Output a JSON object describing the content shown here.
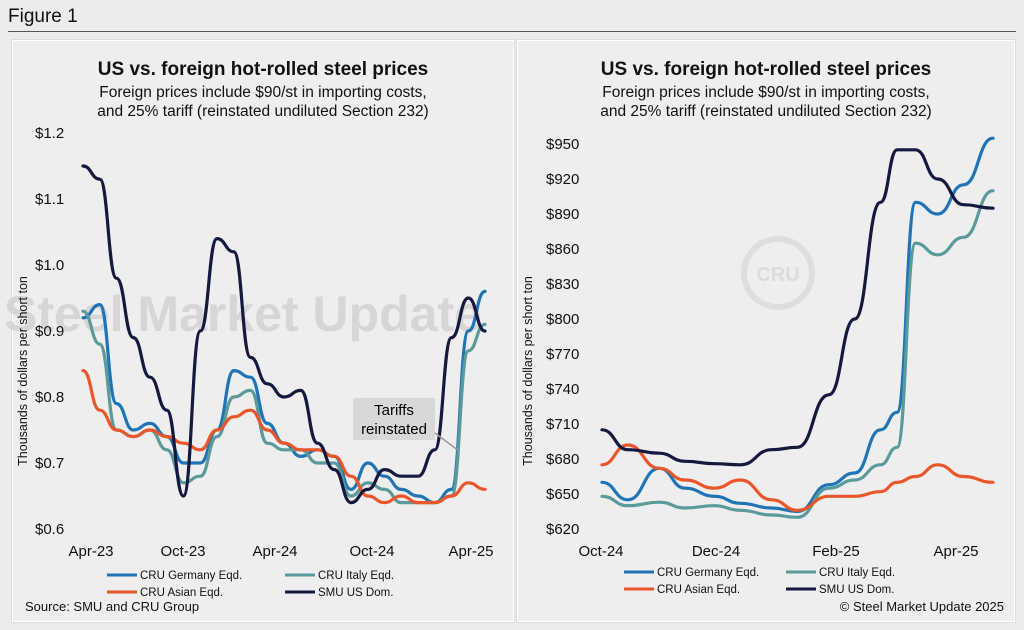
{
  "figure_label": "Figure 1",
  "source": "Source: SMU and CRU Group",
  "copyright": "© Steel Market Update 2025",
  "watermark": "Steel Market Update",
  "colors": {
    "germany": "#1f74b5",
    "italy": "#5b9a9b",
    "asian": "#e8562a",
    "us": "#15183f"
  },
  "chart_data": [
    {
      "type": "line",
      "title": "US vs. foreign hot-rolled steel prices",
      "subtitle_line1": "Foreign prices include $90/st in importing costs,",
      "subtitle_line2": "and 25% tariff (reinstated undiluted Section 232)",
      "ylabel": "Thousands of dollars per short ton",
      "xlabel": "",
      "ylim": [
        0.6,
        1.2
      ],
      "xlim": [
        "2023-04",
        "2025-04"
      ],
      "y_ticks": [
        "$1.2",
        "$1.1",
        "$1.0",
        "$0.9",
        "$0.8",
        "$0.7",
        "$0.6"
      ],
      "x_ticks": [
        "Apr-23",
        "Oct-23",
        "Apr-24",
        "Oct-24",
        "Apr-25"
      ],
      "annotation_line1": "Tariffs",
      "annotation_line2": "reinstated",
      "legend": [
        "CRU Germany Eqd.",
        "CRU Italy Eqd.",
        "CRU Asian Eqd.",
        "SMU US Dom."
      ],
      "series": [
        {
          "name": "CRU Germany Eqd.",
          "x": [
            "2023-04",
            "2023-05",
            "2023-06",
            "2023-07",
            "2023-08",
            "2023-09",
            "2023-10",
            "2023-11",
            "2023-12",
            "2024-01",
            "2024-02",
            "2024-03",
            "2024-04",
            "2024-05",
            "2024-06",
            "2024-07",
            "2024-08",
            "2024-09",
            "2024-10",
            "2024-11",
            "2024-12",
            "2025-01",
            "2025-02",
            "2025-03",
            "2025-04"
          ],
          "values": [
            0.92,
            0.94,
            0.79,
            0.75,
            0.76,
            0.74,
            0.7,
            0.7,
            0.75,
            0.84,
            0.83,
            0.76,
            0.73,
            0.71,
            0.72,
            0.71,
            0.66,
            0.7,
            0.68,
            0.66,
            0.65,
            0.64,
            0.66,
            0.9,
            0.96
          ]
        },
        {
          "name": "CRU Italy Eqd.",
          "x": [
            "2023-04",
            "2023-05",
            "2023-06",
            "2023-07",
            "2023-08",
            "2023-09",
            "2023-10",
            "2023-11",
            "2023-12",
            "2024-01",
            "2024-02",
            "2024-03",
            "2024-04",
            "2024-05",
            "2024-06",
            "2024-07",
            "2024-08",
            "2024-09",
            "2024-10",
            "2024-11",
            "2024-12",
            "2025-01",
            "2025-02",
            "2025-03",
            "2025-04"
          ],
          "values": [
            0.93,
            0.88,
            0.75,
            0.74,
            0.75,
            0.72,
            0.67,
            0.68,
            0.74,
            0.8,
            0.81,
            0.73,
            0.72,
            0.72,
            0.7,
            0.7,
            0.65,
            0.67,
            0.66,
            0.64,
            0.64,
            0.64,
            0.65,
            0.87,
            0.91
          ]
        },
        {
          "name": "CRU Asian Eqd.",
          "x": [
            "2023-04",
            "2023-05",
            "2023-06",
            "2023-07",
            "2023-08",
            "2023-09",
            "2023-10",
            "2023-11",
            "2023-12",
            "2024-01",
            "2024-02",
            "2024-03",
            "2024-04",
            "2024-05",
            "2024-06",
            "2024-07",
            "2024-08",
            "2024-09",
            "2024-10",
            "2024-11",
            "2024-12",
            "2025-01",
            "2025-02",
            "2025-03",
            "2025-04"
          ],
          "values": [
            0.84,
            0.78,
            0.75,
            0.74,
            0.75,
            0.74,
            0.73,
            0.72,
            0.75,
            0.77,
            0.78,
            0.75,
            0.73,
            0.72,
            0.72,
            0.71,
            0.68,
            0.65,
            0.64,
            0.65,
            0.64,
            0.64,
            0.65,
            0.67,
            0.66
          ]
        },
        {
          "name": "SMU US Dom.",
          "x": [
            "2023-04",
            "2023-05",
            "2023-06",
            "2023-07",
            "2023-08",
            "2023-09",
            "2023-10",
            "2023-11",
            "2023-12",
            "2024-01",
            "2024-02",
            "2024-03",
            "2024-04",
            "2024-05",
            "2024-06",
            "2024-07",
            "2024-08",
            "2024-09",
            "2024-10",
            "2024-11",
            "2024-12",
            "2025-01",
            "2025-02",
            "2025-03",
            "2025-04"
          ],
          "values": [
            1.15,
            1.13,
            0.98,
            0.89,
            0.83,
            0.78,
            0.65,
            0.9,
            1.04,
            1.02,
            0.86,
            0.82,
            0.8,
            0.81,
            0.73,
            0.69,
            0.64,
            0.66,
            0.69,
            0.68,
            0.68,
            0.72,
            0.89,
            0.95,
            0.9
          ]
        }
      ]
    },
    {
      "type": "line",
      "title": "US vs. foreign hot-rolled steel prices",
      "subtitle_line1": "Foreign prices include $90/st in importing costs,",
      "subtitle_line2": "and 25% tariff (reinstated undiluted Section 232)",
      "ylabel": "Thousands of dollars per short ton",
      "xlabel": "",
      "ylim": [
        620,
        950
      ],
      "xlim": [
        "2024-10-01",
        "2025-05-01"
      ],
      "y_ticks": [
        "$950",
        "$920",
        "$890",
        "$860",
        "$830",
        "$800",
        "$770",
        "$740",
        "$710",
        "$680",
        "$650",
        "$620"
      ],
      "x_ticks": [
        "Oct-24",
        "Dec-24",
        "Feb-25",
        "Apr-25"
      ],
      "legend": [
        "CRU Germany Eqd.",
        "CRU Italy Eqd.",
        "CRU Asian Eqd.",
        "SMU US Dom."
      ],
      "series": [
        {
          "name": "CRU Germany Eqd.",
          "x": [
            "2024-10-01",
            "2024-10-15",
            "2024-11-01",
            "2024-11-15",
            "2024-12-01",
            "2024-12-15",
            "2025-01-01",
            "2025-01-15",
            "2025-02-01",
            "2025-02-15",
            "2025-03-01",
            "2025-03-10",
            "2025-03-20",
            "2025-04-01",
            "2025-04-15",
            "2025-05-01"
          ],
          "values": [
            660,
            645,
            672,
            655,
            648,
            642,
            638,
            635,
            658,
            668,
            705,
            720,
            900,
            890,
            915,
            955
          ]
        },
        {
          "name": "CRU Italy Eqd.",
          "x": [
            "2024-10-01",
            "2024-10-15",
            "2024-11-01",
            "2024-11-15",
            "2024-12-01",
            "2024-12-15",
            "2025-01-01",
            "2025-01-15",
            "2025-02-01",
            "2025-02-15",
            "2025-03-01",
            "2025-03-10",
            "2025-03-20",
            "2025-04-01",
            "2025-04-15",
            "2025-05-01"
          ],
          "values": [
            648,
            640,
            643,
            638,
            640,
            636,
            632,
            630,
            655,
            662,
            675,
            690,
            865,
            855,
            870,
            910
          ]
        },
        {
          "name": "CRU Asian Eqd.",
          "x": [
            "2024-10-01",
            "2024-10-15",
            "2024-11-01",
            "2024-11-15",
            "2024-12-01",
            "2024-12-15",
            "2025-01-01",
            "2025-01-15",
            "2025-02-01",
            "2025-02-15",
            "2025-03-01",
            "2025-03-10",
            "2025-03-20",
            "2025-04-01",
            "2025-04-15",
            "2025-05-01"
          ],
          "values": [
            675,
            692,
            672,
            662,
            655,
            662,
            645,
            636,
            648,
            648,
            652,
            660,
            665,
            675,
            665,
            660
          ]
        },
        {
          "name": "SMU US Dom.",
          "x": [
            "2024-10-01",
            "2024-10-15",
            "2024-11-01",
            "2024-11-15",
            "2024-12-01",
            "2024-12-15",
            "2025-01-01",
            "2025-01-15",
            "2025-02-01",
            "2025-02-15",
            "2025-03-01",
            "2025-03-10",
            "2025-03-20",
            "2025-04-01",
            "2025-04-15",
            "2025-05-01"
          ],
          "values": [
            705,
            688,
            685,
            678,
            676,
            675,
            688,
            690,
            735,
            800,
            900,
            945,
            945,
            920,
            898,
            895
          ]
        }
      ]
    }
  ]
}
